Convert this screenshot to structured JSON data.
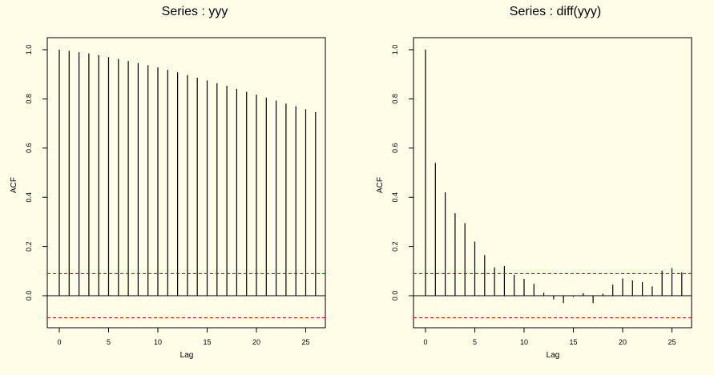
{
  "chart_data": [
    {
      "type": "bar",
      "title": "Series : yyy",
      "xlabel": "Lag",
      "ylabel": "ACF",
      "xlim": [
        0,
        26
      ],
      "ylim": [
        -0.1,
        1.0
      ],
      "x_ticks": [
        0,
        5,
        10,
        15,
        20,
        25
      ],
      "y_ticks": [
        0.0,
        0.2,
        0.4,
        0.6,
        0.8,
        1.0
      ],
      "x": [
        0,
        1,
        2,
        3,
        4,
        5,
        6,
        7,
        8,
        9,
        10,
        11,
        12,
        13,
        14,
        15,
        16,
        17,
        18,
        19,
        20,
        21,
        22,
        23,
        24,
        25,
        26
      ],
      "values": [
        1.0,
        0.995,
        0.99,
        0.985,
        0.978,
        0.97,
        0.962,
        0.954,
        0.946,
        0.937,
        0.928,
        0.918,
        0.908,
        0.897,
        0.886,
        0.875,
        0.864,
        0.853,
        0.841,
        0.829,
        0.817,
        0.805,
        0.793,
        0.781,
        0.77,
        0.758,
        0.746
      ],
      "conf_band": [
        0.09,
        -0.09
      ],
      "grid": false,
      "legend": "none",
      "colors": {
        "bars": "#000000",
        "zero_line": "#000000",
        "conf_band": "#cc0000"
      }
    },
    {
      "type": "bar",
      "title": "Series : diff(yyy)",
      "xlabel": "Lag",
      "ylabel": "ACF",
      "xlim": [
        0,
        26
      ],
      "ylim": [
        -0.1,
        1.0
      ],
      "x_ticks": [
        0,
        5,
        10,
        15,
        20,
        25
      ],
      "y_ticks": [
        0.0,
        0.2,
        0.4,
        0.6,
        0.8,
        1.0
      ],
      "x": [
        0,
        1,
        2,
        3,
        4,
        5,
        6,
        7,
        8,
        9,
        10,
        11,
        12,
        13,
        14,
        15,
        16,
        17,
        18,
        19,
        20,
        21,
        22,
        23,
        24,
        25,
        26
      ],
      "values": [
        1.0,
        0.54,
        0.42,
        0.335,
        0.295,
        0.22,
        0.165,
        0.115,
        0.12,
        0.085,
        0.068,
        0.048,
        0.012,
        -0.015,
        -0.03,
        -0.005,
        0.01,
        -0.03,
        0.008,
        0.045,
        0.07,
        0.062,
        0.055,
        0.038,
        0.102,
        0.112,
        0.095
      ],
      "conf_band": [
        0.09,
        -0.09
      ],
      "grid": false,
      "legend": "none",
      "colors": {
        "bars": "#000000",
        "zero_line": "#000000",
        "conf_band": "#cc0000"
      }
    }
  ]
}
